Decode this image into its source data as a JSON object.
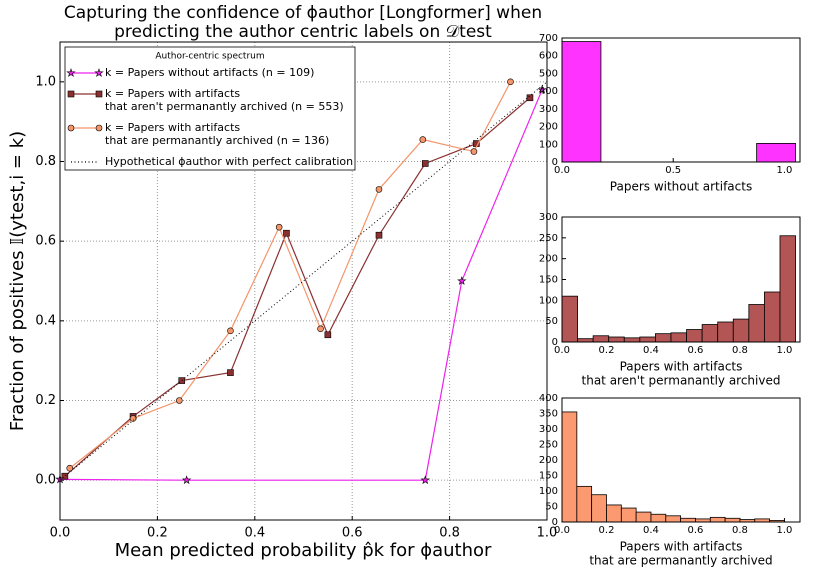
{
  "chart_data": [
    {
      "type": "line",
      "title": [
        "Capturing the confidence of ϕauthor [Longformer] when",
        "predicting the author centric labels on 𝒟test"
      ],
      "xlabel": "Mean predicted probability p̂k for ϕauthor",
      "ylabel": "Fraction of positives 𝕀(ytest,i = k)",
      "legend_title": "Author-centric spectrum",
      "legend": "upper left",
      "grid": true,
      "xlim": [
        0,
        1
      ],
      "ylim": [
        -0.1,
        1.1
      ],
      "xticks": [
        {
          "value": 0,
          "label": "0.0"
        },
        {
          "value": 0.2,
          "label": "0.2"
        },
        {
          "value": 0.4,
          "label": "0.4"
        },
        {
          "value": 0.6,
          "label": "0.6"
        },
        {
          "value": 0.8,
          "label": "0.8"
        },
        {
          "value": 1,
          "label": "1.0"
        }
      ],
      "yticks": [
        {
          "value": 0,
          "label": "0.0"
        },
        {
          "value": 0.2,
          "label": "0.2"
        },
        {
          "value": 0.4,
          "label": "0.4"
        },
        {
          "value": 0.6,
          "label": "0.6"
        },
        {
          "value": 0.8,
          "label": "0.8"
        },
        {
          "value": 1,
          "label": "1.0"
        }
      ],
      "series": [
        {
          "name": [
            "k = Papers without artifacts (n = 109)"
          ],
          "color": "#ee22ee",
          "marker": "star",
          "x": [
            0.0,
            0.26,
            0.75,
            0.825,
            0.99
          ],
          "values": [
            0.002,
            0.0,
            0.0,
            0.5,
            0.98
          ]
        },
        {
          "name": [
            "k = Papers with artifacts",
            "that aren't permanantly archived (n = 553)"
          ],
          "color": "#8b3030",
          "marker": "square",
          "x": [
            0.01,
            0.15,
            0.25,
            0.35,
            0.465,
            0.55,
            0.655,
            0.75,
            0.855,
            0.965
          ],
          "values": [
            0.01,
            0.16,
            0.25,
            0.27,
            0.62,
            0.365,
            0.615,
            0.795,
            0.845,
            0.96
          ]
        },
        {
          "name": [
            "k = Papers with artifacts",
            "that are permanantly archived (n = 136)"
          ],
          "color": "#f4956a",
          "marker": "circle",
          "x": [
            0.02,
            0.15,
            0.245,
            0.35,
            0.45,
            0.535,
            0.655,
            0.745,
            0.85,
            0.925
          ],
          "values": [
            0.03,
            0.155,
            0.2,
            0.375,
            0.635,
            0.38,
            0.73,
            0.855,
            0.825,
            1.0
          ]
        },
        {
          "name": [
            "Hypothetical ϕauthor with perfect calibration"
          ],
          "color": "#000000",
          "marker": null,
          "dash": "dotted",
          "x": [
            0,
            1
          ],
          "values": [
            0,
            1
          ]
        }
      ]
    },
    {
      "type": "histogram",
      "xlabel": [
        "Papers without artifacts"
      ],
      "color": "#ff33ff",
      "xlim": [
        0,
        1.07
      ],
      "ylim": [
        0,
        700
      ],
      "xticks": [
        {
          "value": 0,
          "label": "0.0"
        },
        {
          "value": 0.5,
          "label": "0.5"
        },
        {
          "value": 1,
          "label": "1.0"
        }
      ],
      "yticks": [
        0,
        100,
        200,
        300,
        400,
        500,
        600,
        700
      ],
      "bins": [
        0,
        0.175,
        0.35,
        0.525,
        0.7,
        0.875,
        1.05
      ],
      "values": [
        680,
        0,
        0,
        0,
        0,
        105
      ]
    },
    {
      "type": "histogram",
      "xlabel": [
        "Papers with artifacts",
        "that aren't permanantly archived"
      ],
      "color": "#b35555",
      "xlim": [
        0,
        1.07
      ],
      "ylim": [
        0,
        300
      ],
      "xticks": [
        {
          "value": 0,
          "label": "0.0"
        },
        {
          "value": 0.2,
          "label": "0.2"
        },
        {
          "value": 0.4,
          "label": "0.4"
        },
        {
          "value": 0.6,
          "label": "0.6"
        },
        {
          "value": 0.8,
          "label": "0.8"
        },
        {
          "value": 1,
          "label": "1.0"
        }
      ],
      "yticks": [
        0,
        50,
        100,
        150,
        200,
        250,
        300
      ],
      "bins": [
        0,
        0.07,
        0.14,
        0.21,
        0.28,
        0.35,
        0.42,
        0.49,
        0.56,
        0.63,
        0.7,
        0.77,
        0.84,
        0.91,
        0.98,
        1.05
      ],
      "values": [
        110,
        8,
        15,
        12,
        10,
        12,
        20,
        22,
        30,
        42,
        48,
        55,
        90,
        120,
        255
      ]
    },
    {
      "type": "histogram",
      "xlabel": [
        "Papers with artifacts",
        "that are permanantly archived"
      ],
      "color": "#fb9a70",
      "xlim": [
        0,
        1.07
      ],
      "ylim": [
        0,
        400
      ],
      "xticks": [
        {
          "value": 0,
          "label": "0.0"
        },
        {
          "value": 0.2,
          "label": "0.2"
        },
        {
          "value": 0.4,
          "label": "0.4"
        },
        {
          "value": 0.6,
          "label": "0.6"
        },
        {
          "value": 0.8,
          "label": "0.8"
        },
        {
          "value": 1,
          "label": "1.0"
        }
      ],
      "yticks": [
        0,
        50,
        100,
        150,
        200,
        250,
        300,
        350,
        400
      ],
      "bins": [
        0,
        0.0667,
        0.1333,
        0.2,
        0.2667,
        0.3333,
        0.4,
        0.4667,
        0.5333,
        0.6,
        0.6667,
        0.7333,
        0.8,
        0.8667,
        0.9333,
        1.0
      ],
      "values": [
        355,
        115,
        88,
        55,
        45,
        32,
        25,
        20,
        12,
        10,
        15,
        12,
        8,
        10,
        5
      ]
    }
  ]
}
